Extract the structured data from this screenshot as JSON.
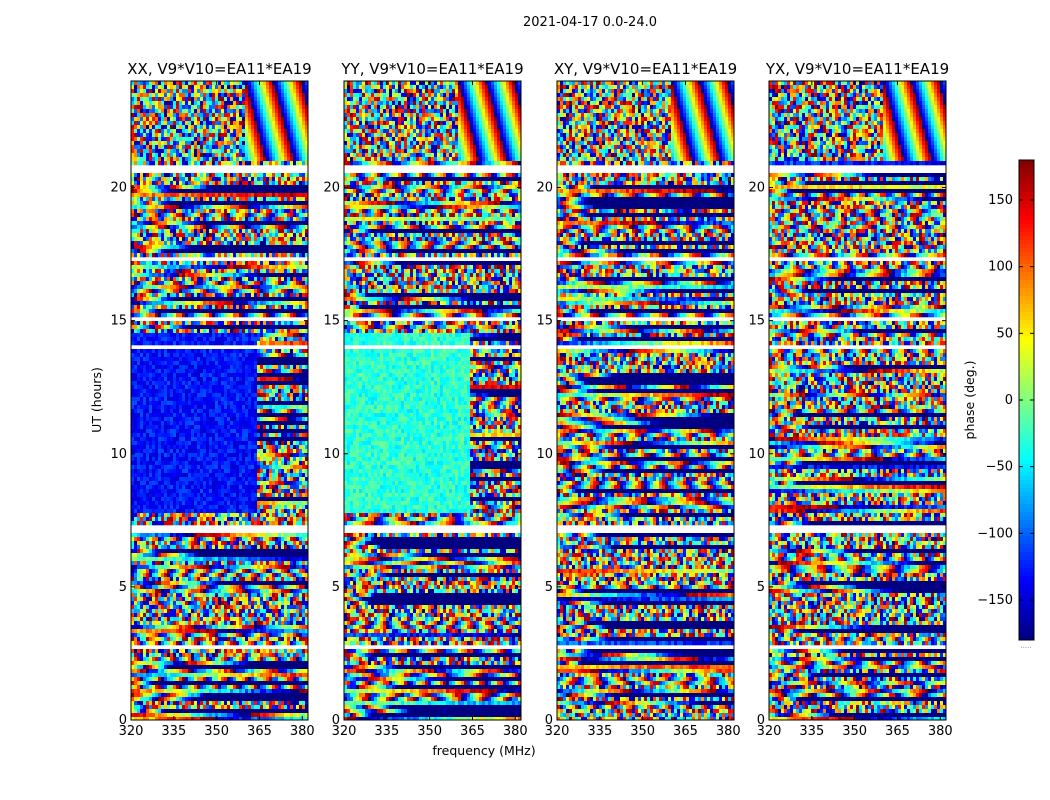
{
  "chart_data": {
    "type": "heatmap",
    "title": "2021-04-17 0.0-24.0",
    "xlabel": "frequency (MHz)",
    "ylabel": "UT (hours)",
    "colorbar_label": "phase (deg.)",
    "colormap": "jet",
    "xlim": [
      320,
      382
    ],
    "ylim": [
      0,
      24
    ],
    "clim": [
      -180,
      180
    ],
    "xticks": [
      320,
      335,
      350,
      365,
      380
    ],
    "yticks": [
      0,
      5,
      10,
      15,
      20
    ],
    "colorbar_ticks": [
      150,
      100,
      50,
      0,
      -50,
      -100,
      -150
    ],
    "colorbar_tick_labels": [
      "150",
      "100",
      "50",
      "0",
      "−50",
      "−100",
      "−150"
    ],
    "colorbar_extra_label": ".....",
    "panels": [
      {
        "title": "XX, V9*V10=EA11*EA19",
        "mean_phase_day": -130
      },
      {
        "title": "YY, V9*V10=EA11*EA19",
        "mean_phase_day": -30
      },
      {
        "title": "XY, V9*V10=EA11*EA19",
        "mean_phase_day": null
      },
      {
        "title": "YX, V9*V10=EA11*EA19",
        "mean_phase_day": null
      }
    ],
    "flagged_hours": [
      [
        20.6,
        20.8
      ],
      [
        17.3,
        17.4
      ],
      [
        15.0,
        15.1
      ],
      [
        14.0,
        14.1
      ],
      [
        7.4,
        7.5
      ],
      [
        7.0,
        7.3
      ],
      [
        2.6,
        2.8
      ]
    ]
  }
}
